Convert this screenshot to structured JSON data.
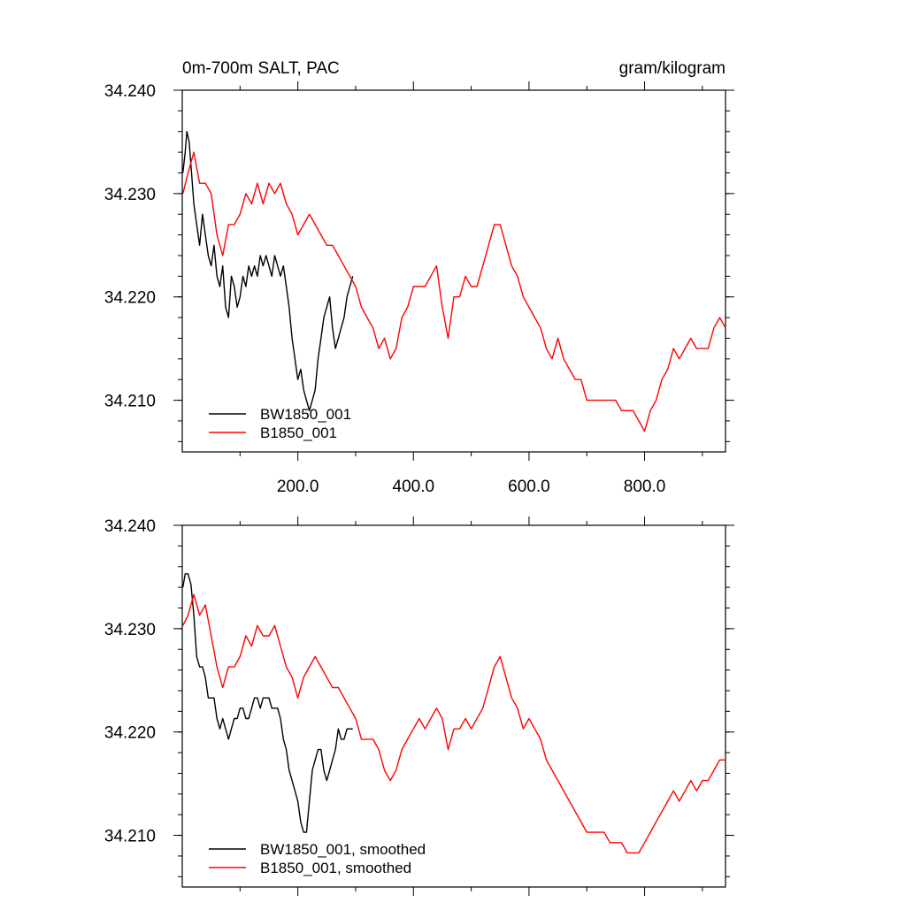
{
  "chart_data": [
    {
      "type": "line",
      "title": "0m-700m SALT, PAC",
      "units": "gram/kilogram",
      "xlim": [
        0,
        940
      ],
      "ylim": [
        34.205,
        34.24
      ],
      "xticks": [
        200,
        400,
        600,
        800
      ],
      "xtick_labels": [
        "200.0",
        "400.0",
        "600.0",
        "800.0"
      ],
      "yticks": [
        34.21,
        34.22,
        34.23,
        34.24
      ],
      "ytick_labels": [
        "34.210",
        "34.220",
        "34.230",
        "34.240"
      ],
      "legend": [
        "BW1850_001",
        "B1850_001"
      ],
      "legend_position": "bottom-left",
      "series": [
        {
          "name": "BW1850_001",
          "color": "#000000",
          "x": [
            1,
            5,
            8,
            12,
            16,
            20,
            25,
            30,
            35,
            40,
            45,
            50,
            55,
            60,
            65,
            70,
            75,
            80,
            85,
            90,
            95,
            100,
            105,
            110,
            115,
            120,
            125,
            130,
            135,
            140,
            145,
            150,
            155,
            160,
            165,
            170,
            175,
            180,
            185,
            190,
            195,
            200,
            205,
            210,
            215,
            220,
            225,
            230,
            235,
            240,
            245,
            250,
            255,
            260,
            265,
            270,
            275,
            280,
            285,
            290,
            295
          ],
          "values": [
            34.232,
            34.234,
            34.236,
            34.235,
            34.232,
            34.229,
            34.227,
            34.225,
            34.228,
            34.226,
            34.224,
            34.223,
            34.225,
            34.222,
            34.221,
            34.223,
            34.219,
            34.218,
            34.222,
            34.221,
            34.219,
            34.22,
            34.222,
            34.221,
            34.223,
            34.222,
            34.223,
            34.222,
            34.224,
            34.223,
            34.224,
            34.223,
            34.222,
            34.224,
            34.223,
            34.222,
            34.223,
            34.221,
            34.219,
            34.216,
            34.214,
            34.212,
            34.213,
            34.211,
            34.21,
            34.209,
            34.21,
            34.211,
            34.214,
            34.216,
            34.218,
            34.219,
            34.22,
            34.217,
            34.215,
            34.216,
            34.217,
            34.218,
            34.22,
            34.221,
            34.222
          ]
        },
        {
          "name": "B1850_001",
          "color": "#ff0000",
          "x": [
            1,
            10,
            20,
            30,
            40,
            50,
            60,
            70,
            80,
            90,
            100,
            110,
            120,
            130,
            140,
            150,
            160,
            170,
            180,
            190,
            200,
            210,
            220,
            230,
            240,
            250,
            260,
            270,
            280,
            290,
            300,
            310,
            320,
            330,
            340,
            350,
            360,
            370,
            380,
            390,
            400,
            410,
            420,
            430,
            440,
            450,
            460,
            470,
            480,
            490,
            500,
            510,
            520,
            530,
            540,
            550,
            560,
            570,
            580,
            590,
            600,
            610,
            620,
            630,
            640,
            650,
            660,
            670,
            680,
            690,
            700,
            710,
            720,
            730,
            740,
            750,
            760,
            770,
            780,
            790,
            800,
            810,
            820,
            830,
            840,
            850,
            860,
            870,
            880,
            890,
            900,
            910,
            920,
            930,
            940
          ],
          "values": [
            34.23,
            34.232,
            34.234,
            34.231,
            34.231,
            34.23,
            34.226,
            34.224,
            34.227,
            34.227,
            34.228,
            34.23,
            34.229,
            34.231,
            34.229,
            34.231,
            34.23,
            34.231,
            34.229,
            34.228,
            34.226,
            34.227,
            34.228,
            34.227,
            34.226,
            34.225,
            34.225,
            34.224,
            34.223,
            34.222,
            34.221,
            34.219,
            34.218,
            34.217,
            34.215,
            34.216,
            34.214,
            34.215,
            34.218,
            34.219,
            34.221,
            34.221,
            34.221,
            34.222,
            34.223,
            34.219,
            34.216,
            34.22,
            34.22,
            34.222,
            34.221,
            34.221,
            34.223,
            34.225,
            34.227,
            34.227,
            34.225,
            34.223,
            34.222,
            34.22,
            34.219,
            34.218,
            34.217,
            34.215,
            34.214,
            34.216,
            34.214,
            34.213,
            34.212,
            34.212,
            34.21,
            34.21,
            34.21,
            34.21,
            34.21,
            34.21,
            34.209,
            34.209,
            34.209,
            34.208,
            34.207,
            34.209,
            34.21,
            34.212,
            34.213,
            34.215,
            34.214,
            34.215,
            34.216,
            34.215,
            34.215,
            34.215,
            34.217,
            34.218,
            34.217
          ]
        }
      ]
    },
    {
      "type": "line",
      "xlim": [
        0,
        940
      ],
      "ylim": [
        34.205,
        34.24
      ],
      "yticks": [
        34.21,
        34.22,
        34.23,
        34.24
      ],
      "ytick_labels": [
        "34.210",
        "34.220",
        "34.230",
        "34.240"
      ],
      "legend": [
        "BW1850_001, smoothed",
        "B1850_001, smoothed"
      ],
      "legend_position": "bottom-left",
      "series": [
        {
          "name": "BW1850_001, smoothed",
          "color": "#000000",
          "x": [
            1,
            5,
            10,
            15,
            20,
            25,
            30,
            35,
            40,
            45,
            50,
            55,
            60,
            65,
            70,
            75,
            80,
            85,
            90,
            95,
            100,
            105,
            110,
            115,
            120,
            125,
            130,
            135,
            140,
            145,
            150,
            155,
            160,
            165,
            170,
            175,
            180,
            185,
            190,
            195,
            200,
            205,
            210,
            215,
            220,
            225,
            230,
            235,
            240,
            245,
            250,
            255,
            260,
            265,
            270,
            275,
            280,
            285,
            290,
            295
          ],
          "values": [
            34.234,
            34.2353,
            34.2353,
            34.2343,
            34.2313,
            34.2273,
            34.2263,
            34.2263,
            34.2253,
            34.2233,
            34.2233,
            34.2233,
            34.2213,
            34.2203,
            34.2213,
            34.2203,
            34.2193,
            34.2203,
            34.2213,
            34.2213,
            34.2223,
            34.2223,
            34.2213,
            34.2213,
            34.2223,
            34.2233,
            34.2233,
            34.2223,
            34.2233,
            34.2233,
            34.2233,
            34.2223,
            34.2223,
            34.2223,
            34.2213,
            34.2193,
            34.2183,
            34.2163,
            34.2153,
            34.2143,
            34.2133,
            34.2113,
            34.2103,
            34.2103,
            34.2133,
            34.2163,
            34.2173,
            34.2183,
            34.2183,
            34.2163,
            34.2153,
            34.2163,
            34.2173,
            34.2183,
            34.2203,
            34.2193,
            34.2193,
            34.2203,
            34.2203,
            34.2203
          ]
        },
        {
          "name": "B1850_001, smoothed",
          "color": "#ff0000",
          "x": [
            1,
            10,
            20,
            30,
            40,
            50,
            60,
            70,
            80,
            90,
            100,
            110,
            120,
            130,
            140,
            150,
            160,
            170,
            180,
            190,
            200,
            210,
            220,
            230,
            240,
            250,
            260,
            270,
            280,
            290,
            300,
            310,
            320,
            330,
            340,
            350,
            360,
            370,
            380,
            390,
            400,
            410,
            420,
            430,
            440,
            450,
            460,
            470,
            480,
            490,
            500,
            510,
            520,
            530,
            540,
            550,
            560,
            570,
            580,
            590,
            600,
            610,
            620,
            630,
            640,
            650,
            660,
            670,
            680,
            690,
            700,
            710,
            720,
            730,
            740,
            750,
            760,
            770,
            780,
            790,
            800,
            810,
            820,
            830,
            840,
            850,
            860,
            870,
            880,
            890,
            900,
            910,
            920,
            930,
            940
          ],
          "values": [
            34.2303,
            34.2313,
            34.2333,
            34.2313,
            34.2323,
            34.2293,
            34.2263,
            34.2243,
            34.2263,
            34.2263,
            34.2273,
            34.2293,
            34.2283,
            34.2303,
            34.2293,
            34.2293,
            34.2303,
            34.2283,
            34.2263,
            34.2253,
            34.2233,
            34.2253,
            34.2263,
            34.2273,
            34.2263,
            34.2253,
            34.2243,
            34.2243,
            34.2233,
            34.2223,
            34.2213,
            34.2193,
            34.2193,
            34.2193,
            34.2183,
            34.2163,
            34.2153,
            34.2163,
            34.2183,
            34.2193,
            34.2203,
            34.2213,
            34.2203,
            34.2213,
            34.2223,
            34.2213,
            34.2183,
            34.2203,
            34.2203,
            34.2213,
            34.2203,
            34.2213,
            34.2223,
            34.2243,
            34.2263,
            34.2273,
            34.2253,
            34.2233,
            34.2223,
            34.2203,
            34.2213,
            34.2203,
            34.2193,
            34.2173,
            34.2163,
            34.2153,
            34.2143,
            34.2133,
            34.2123,
            34.2113,
            34.2103,
            34.2103,
            34.2103,
            34.2103,
            34.2093,
            34.2093,
            34.2093,
            34.2083,
            34.2083,
            34.2083,
            34.2093,
            34.2103,
            34.2113,
            34.2123,
            34.2133,
            34.2143,
            34.2133,
            34.2143,
            34.2153,
            34.2143,
            34.2153,
            34.2153,
            34.2163,
            34.2173,
            34.2173
          ]
        }
      ]
    }
  ]
}
